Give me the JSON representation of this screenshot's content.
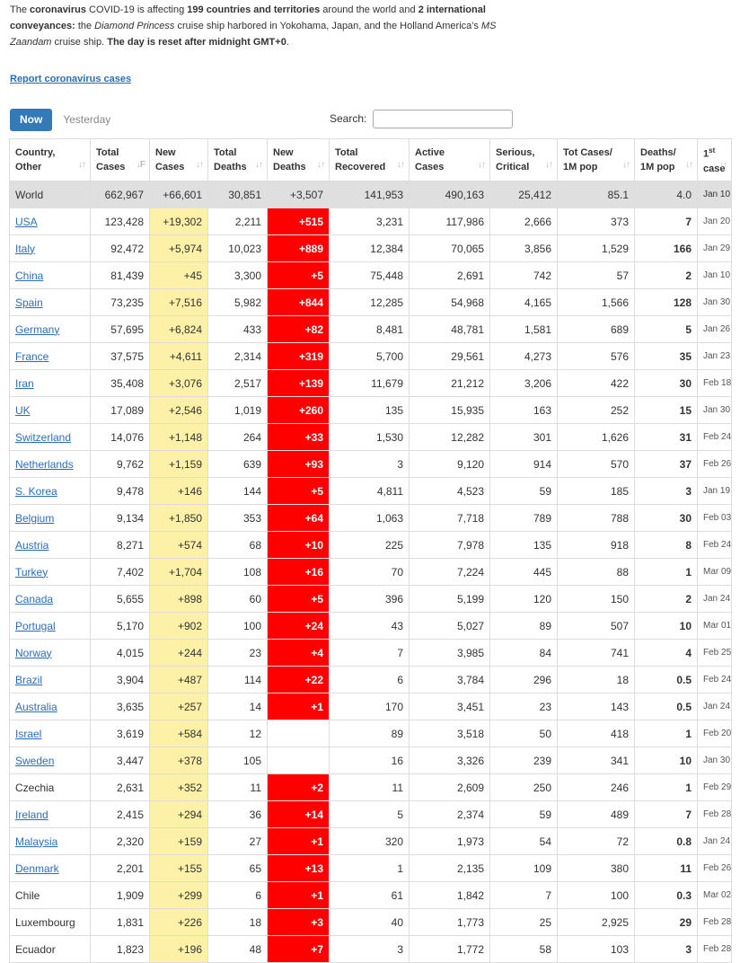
{
  "intro": {
    "p1": "The ",
    "p2": "coronavirus",
    "p3": " COVID-19 is affecting ",
    "p4": "199 countries and territories",
    "p5": " around the world and ",
    "p6": "2 international conveyances:",
    "p7": " the ",
    "p8": "Diamond Princess",
    "p9": " cruise ship harbored in Yokohama, Japan, and the Holland America's ",
    "p10": "MS Zaandam",
    "p11": " cruise ship. ",
    "p12": "The day is reset after midnight GMT+0",
    "p13": "."
  },
  "report_link": "Report coronavirus cases",
  "tabs": {
    "now": "Now",
    "yesterday": "Yesterday"
  },
  "search": {
    "label": "Search:",
    "value": ""
  },
  "columns": [
    {
      "l1": "Country,",
      "l2": "Other",
      "sort": "↓↑"
    },
    {
      "l1": "Total",
      "l2": "Cases",
      "sort": "↓F"
    },
    {
      "l1": "New",
      "l2": "Cases",
      "sort": "↓↑"
    },
    {
      "l1": "Total",
      "l2": "Deaths",
      "sort": "↓↑"
    },
    {
      "l1": "New",
      "l2": "Deaths",
      "sort": "↓↑"
    },
    {
      "l1": "Total",
      "l2": "Recovered",
      "sort": "↓↑"
    },
    {
      "l1": "Active",
      "l2": "Cases",
      "sort": "↓↑"
    },
    {
      "l1": "Serious,",
      "l2": "Critical",
      "sort": "↓↑"
    },
    {
      "l1": "Tot Cases/",
      "l2": "1M pop",
      "sort": "↓↑"
    },
    {
      "l1": "Deaths/",
      "l2": "1M pop",
      "sort": "↓↑"
    },
    {
      "l1": "1",
      "sup": "st",
      "l2": "case",
      "sort": "↓↑"
    }
  ],
  "world_row": [
    "World",
    "662,967",
    "+66,601",
    "30,851",
    "+3,507",
    "141,953",
    "490,163",
    "25,412",
    "85.1",
    "4.0",
    "Jan 10"
  ],
  "rows": [
    {
      "country": "USA",
      "link": true,
      "total": "123,428",
      "new": "+19,302",
      "deaths": "2,211",
      "new_deaths": "+515",
      "recovered": "3,231",
      "active": "117,986",
      "serious": "2,666",
      "per_m": "373",
      "deaths_m": "7",
      "first": "Jan 20"
    },
    {
      "country": "Italy",
      "link": true,
      "total": "92,472",
      "new": "+5,974",
      "deaths": "10,023",
      "new_deaths": "+889",
      "recovered": "12,384",
      "active": "70,065",
      "serious": "3,856",
      "per_m": "1,529",
      "deaths_m": "166",
      "first": "Jan 29"
    },
    {
      "country": "China",
      "link": true,
      "total": "81,439",
      "new": "+45",
      "deaths": "3,300",
      "new_deaths": "+5",
      "recovered": "75,448",
      "active": "2,691",
      "serious": "742",
      "per_m": "57",
      "deaths_m": "2",
      "first": "Jan 10"
    },
    {
      "country": "Spain",
      "link": true,
      "total": "73,235",
      "new": "+7,516",
      "deaths": "5,982",
      "new_deaths": "+844",
      "recovered": "12,285",
      "active": "54,968",
      "serious": "4,165",
      "per_m": "1,566",
      "deaths_m": "128",
      "first": "Jan 30"
    },
    {
      "country": "Germany",
      "link": true,
      "total": "57,695",
      "new": "+6,824",
      "deaths": "433",
      "new_deaths": "+82",
      "recovered": "8,481",
      "active": "48,781",
      "serious": "1,581",
      "per_m": "689",
      "deaths_m": "5",
      "first": "Jan 26"
    },
    {
      "country": "France",
      "link": true,
      "total": "37,575",
      "new": "+4,611",
      "deaths": "2,314",
      "new_deaths": "+319",
      "recovered": "5,700",
      "active": "29,561",
      "serious": "4,273",
      "per_m": "576",
      "deaths_m": "35",
      "first": "Jan 23"
    },
    {
      "country": "Iran",
      "link": true,
      "total": "35,408",
      "new": "+3,076",
      "deaths": "2,517",
      "new_deaths": "+139",
      "recovered": "11,679",
      "active": "21,212",
      "serious": "3,206",
      "per_m": "422",
      "deaths_m": "30",
      "first": "Feb 18"
    },
    {
      "country": "UK",
      "link": true,
      "total": "17,089",
      "new": "+2,546",
      "deaths": "1,019",
      "new_deaths": "+260",
      "recovered": "135",
      "active": "15,935",
      "serious": "163",
      "per_m": "252",
      "deaths_m": "15",
      "first": "Jan 30"
    },
    {
      "country": "Switzerland",
      "link": true,
      "total": "14,076",
      "new": "+1,148",
      "deaths": "264",
      "new_deaths": "+33",
      "recovered": "1,530",
      "active": "12,282",
      "serious": "301",
      "per_m": "1,626",
      "deaths_m": "31",
      "first": "Feb 24"
    },
    {
      "country": "Netherlands",
      "link": true,
      "total": "9,762",
      "new": "+1,159",
      "deaths": "639",
      "new_deaths": "+93",
      "recovered": "3",
      "active": "9,120",
      "serious": "914",
      "per_m": "570",
      "deaths_m": "37",
      "first": "Feb 26"
    },
    {
      "country": "S. Korea",
      "link": true,
      "total": "9,478",
      "new": "+146",
      "deaths": "144",
      "new_deaths": "+5",
      "recovered": "4,811",
      "active": "4,523",
      "serious": "59",
      "per_m": "185",
      "deaths_m": "3",
      "first": "Jan 19"
    },
    {
      "country": "Belgium",
      "link": true,
      "total": "9,134",
      "new": "+1,850",
      "deaths": "353",
      "new_deaths": "+64",
      "recovered": "1,063",
      "active": "7,718",
      "serious": "789",
      "per_m": "788",
      "deaths_m": "30",
      "first": "Feb 03"
    },
    {
      "country": "Austria",
      "link": true,
      "total": "8,271",
      "new": "+574",
      "deaths": "68",
      "new_deaths": "+10",
      "recovered": "225",
      "active": "7,978",
      "serious": "135",
      "per_m": "918",
      "deaths_m": "8",
      "first": "Feb 24"
    },
    {
      "country": "Turkey",
      "link": true,
      "total": "7,402",
      "new": "+1,704",
      "deaths": "108",
      "new_deaths": "+16",
      "recovered": "70",
      "active": "7,224",
      "serious": "445",
      "per_m": "88",
      "deaths_m": "1",
      "first": "Mar 09"
    },
    {
      "country": "Canada",
      "link": true,
      "total": "5,655",
      "new": "+898",
      "deaths": "60",
      "new_deaths": "+5",
      "recovered": "396",
      "active": "5,199",
      "serious": "120",
      "per_m": "150",
      "deaths_m": "2",
      "first": "Jan 24"
    },
    {
      "country": "Portugal",
      "link": true,
      "total": "5,170",
      "new": "+902",
      "deaths": "100",
      "new_deaths": "+24",
      "recovered": "43",
      "active": "5,027",
      "serious": "89",
      "per_m": "507",
      "deaths_m": "10",
      "first": "Mar 01"
    },
    {
      "country": "Norway",
      "link": true,
      "total": "4,015",
      "new": "+244",
      "deaths": "23",
      "new_deaths": "+4",
      "recovered": "7",
      "active": "3,985",
      "serious": "84",
      "per_m": "741",
      "deaths_m": "4",
      "first": "Feb 25"
    },
    {
      "country": "Brazil",
      "link": true,
      "total": "3,904",
      "new": "+487",
      "deaths": "114",
      "new_deaths": "+22",
      "recovered": "6",
      "active": "3,784",
      "serious": "296",
      "per_m": "18",
      "deaths_m": "0.5",
      "first": "Feb 24"
    },
    {
      "country": "Australia",
      "link": true,
      "total": "3,635",
      "new": "+257",
      "deaths": "14",
      "new_deaths": "+1",
      "recovered": "170",
      "active": "3,451",
      "serious": "23",
      "per_m": "143",
      "deaths_m": "0.5",
      "first": "Jan 24"
    },
    {
      "country": "Israel",
      "link": true,
      "total": "3,619",
      "new": "+584",
      "deaths": "12",
      "new_deaths": "",
      "recovered": "89",
      "active": "3,518",
      "serious": "50",
      "per_m": "418",
      "deaths_m": "1",
      "first": "Feb 20"
    },
    {
      "country": "Sweden",
      "link": true,
      "total": "3,447",
      "new": "+378",
      "deaths": "105",
      "new_deaths": "",
      "recovered": "16",
      "active": "3,326",
      "serious": "239",
      "per_m": "341",
      "deaths_m": "10",
      "first": "Jan 30"
    },
    {
      "country": "Czechia",
      "link": false,
      "total": "2,631",
      "new": "+352",
      "deaths": "11",
      "new_deaths": "+2",
      "recovered": "11",
      "active": "2,609",
      "serious": "250",
      "per_m": "246",
      "deaths_m": "1",
      "first": "Feb 29"
    },
    {
      "country": "Ireland",
      "link": true,
      "total": "2,415",
      "new": "+294",
      "deaths": "36",
      "new_deaths": "+14",
      "recovered": "5",
      "active": "2,374",
      "serious": "59",
      "per_m": "489",
      "deaths_m": "7",
      "first": "Feb 28"
    },
    {
      "country": "Malaysia",
      "link": true,
      "total": "2,320",
      "new": "+159",
      "deaths": "27",
      "new_deaths": "+1",
      "recovered": "320",
      "active": "1,973",
      "serious": "54",
      "per_m": "72",
      "deaths_m": "0.8",
      "first": "Jan 24"
    },
    {
      "country": "Denmark",
      "link": true,
      "total": "2,201",
      "new": "+155",
      "deaths": "65",
      "new_deaths": "+13",
      "recovered": "1",
      "active": "2,135",
      "serious": "109",
      "per_m": "380",
      "deaths_m": "11",
      "first": "Feb 26"
    },
    {
      "country": "Chile",
      "link": false,
      "total": "1,909",
      "new": "+299",
      "deaths": "6",
      "new_deaths": "+1",
      "recovered": "61",
      "active": "1,842",
      "serious": "7",
      "per_m": "100",
      "deaths_m": "0.3",
      "first": "Mar 02"
    },
    {
      "country": "Luxembourg",
      "link": false,
      "total": "1,831",
      "new": "+226",
      "deaths": "18",
      "new_deaths": "+3",
      "recovered": "40",
      "active": "1,773",
      "serious": "25",
      "per_m": "2,925",
      "deaths_m": "29",
      "first": "Feb 28"
    },
    {
      "country": "Ecuador",
      "link": false,
      "total": "1,823",
      "new": "+196",
      "deaths": "48",
      "new_deaths": "+7",
      "recovered": "3",
      "active": "1,772",
      "serious": "58",
      "per_m": "103",
      "deaths_m": "3",
      "first": "Feb 28"
    }
  ],
  "colors": {
    "new_deaths_highlight": "#ff0000",
    "new_cases_highlight": "#fdf0a7",
    "world_row": "#dfdfdf",
    "link": "#2a6ebb",
    "now_tab": "#337ab7"
  }
}
